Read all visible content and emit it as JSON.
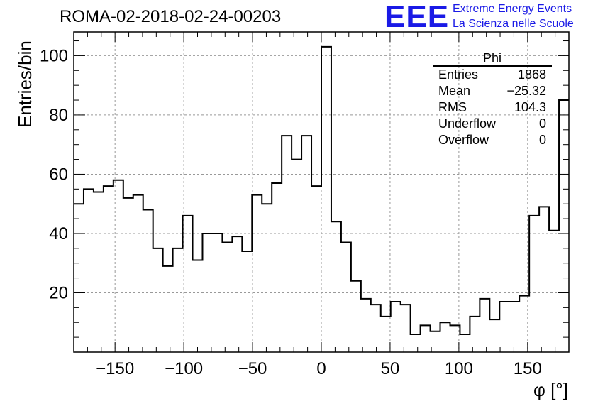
{
  "chart_data": {
    "type": "histogram",
    "title": "ROMA-02-2018-02-24-00203",
    "xlabel": "φ [°]",
    "ylabel": "Entries/bin",
    "xlim": [
      -180,
      180
    ],
    "ylim": [
      0,
      108
    ],
    "grid": true,
    "bin_edges_start": -180,
    "bin_width": 7.2,
    "values": [
      50,
      55,
      54,
      56,
      58,
      52,
      53,
      48,
      35,
      29,
      35,
      46,
      31,
      40,
      40,
      37,
      39,
      34,
      53,
      50,
      57,
      73,
      65,
      73,
      56,
      103,
      44,
      37,
      24,
      18,
      16,
      12,
      17,
      16,
      6,
      9,
      7,
      10,
      9,
      6,
      12,
      18,
      11,
      17,
      17,
      19,
      46,
      49,
      41,
      85
    ],
    "xticks": [
      -150,
      -100,
      -50,
      0,
      50,
      100,
      150
    ],
    "yticks": [
      20,
      40,
      60,
      80,
      100
    ]
  },
  "logo": {
    "mark": "EEE",
    "line1": "Extreme Energy Events",
    "line2": "La Scienza nelle Scuole"
  },
  "stats": {
    "title": "Phi",
    "rows": [
      {
        "label": "Entries",
        "value": "1868"
      },
      {
        "label": "Mean",
        "value": "−25.32"
      },
      {
        "label": "RMS",
        "value": "104.3"
      },
      {
        "label": "Underflow",
        "value": "0"
      },
      {
        "label": "Overflow",
        "value": "0"
      }
    ]
  }
}
